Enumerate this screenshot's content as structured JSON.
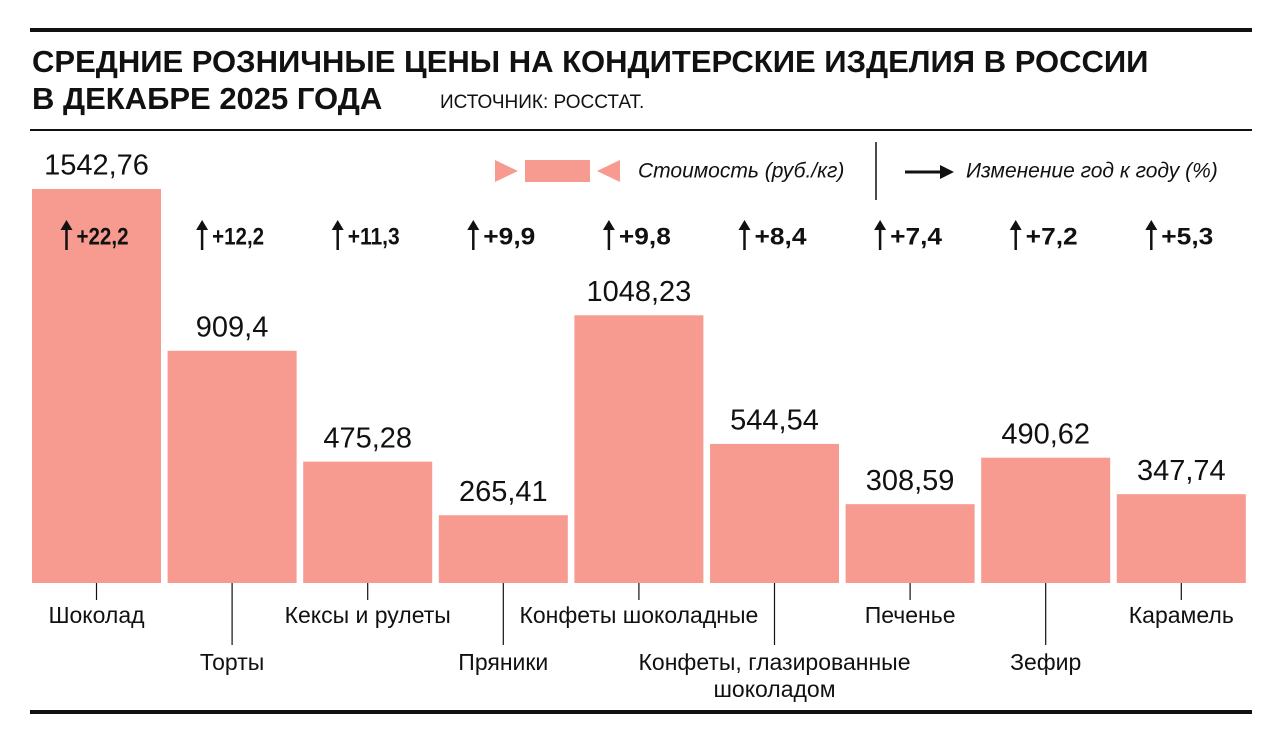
{
  "chart_data": {
    "type": "bar",
    "title": [
      "СРЕДНИЕ РОЗНИЧНЫЕ ЦЕНЫ НА КОНДИТЕРСКИЕ ИЗДЕЛИЯ В РОССИИ",
      "В ДЕКАБРЕ 2025 ГОДА"
    ],
    "source": "ИСТОЧНИК: РОССТАТ.",
    "legend": {
      "values": "Стоимость (руб./кг)",
      "change": "Изменение год к году (%)"
    },
    "categories": [
      "Шоколад",
      "Торты",
      "Кексы и рулеты",
      "Пряники",
      "Конфеты шоколадные",
      "Конфеты, глазированные шоколадом",
      "Печенье",
      "Зефир",
      "Карамель"
    ],
    "values": [
      1542.76,
      909.4,
      475.28,
      265.41,
      1048.23,
      544.54,
      308.59,
      490.62,
      347.74
    ],
    "value_labels": [
      "1542,76",
      "909,4",
      "475,28",
      "265,41",
      "1048,23",
      "544,54",
      "308,59",
      "490,62",
      "347,74"
    ],
    "change": [
      22.2,
      12.2,
      11.3,
      9.9,
      9.8,
      8.4,
      7.4,
      7.2,
      5.3
    ],
    "change_labels": [
      "+22,2",
      "+12,2",
      "+11,3",
      "+9,9",
      "+9,8",
      "+8,4",
      "+7,4",
      "+7,2",
      "+5,3"
    ],
    "color": "#f79a8f"
  }
}
